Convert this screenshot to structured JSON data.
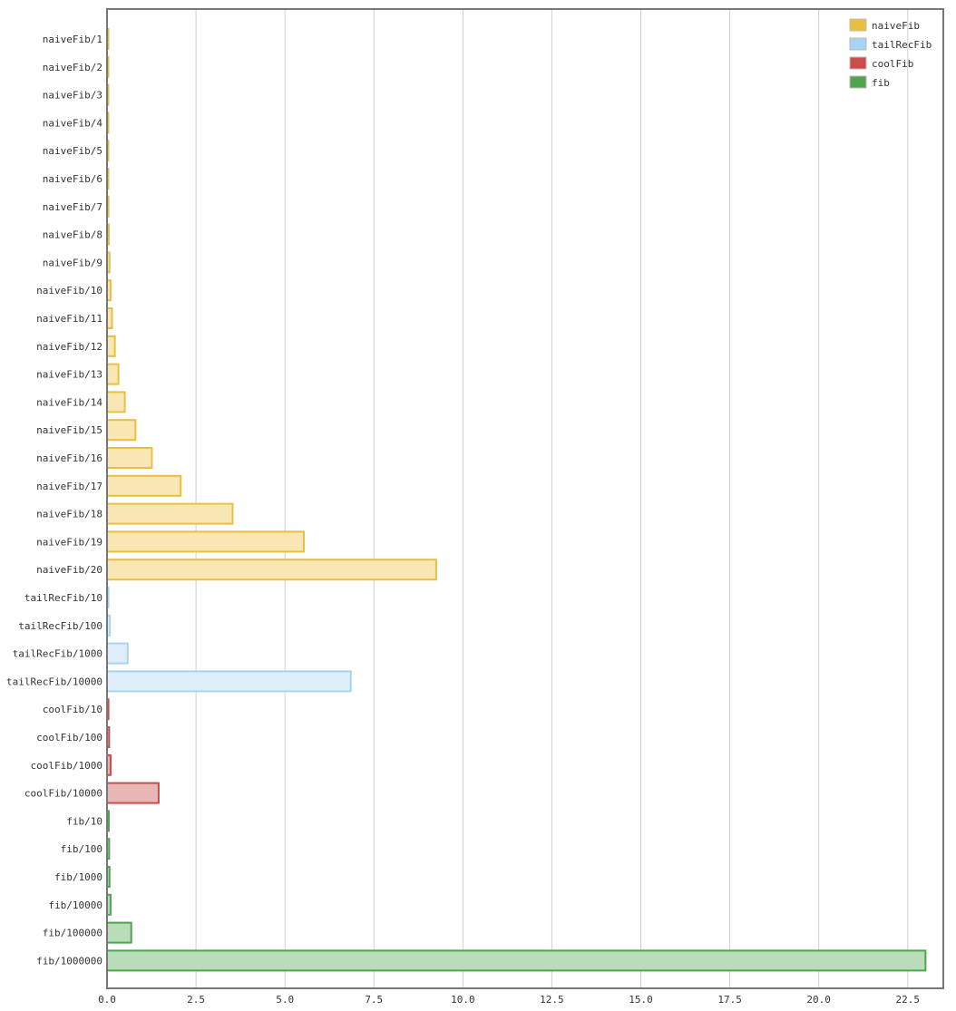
{
  "chart_data": {
    "type": "bar",
    "orientation": "horizontal",
    "title": "",
    "xlabel": "",
    "ylabel": "",
    "xlim": [
      0,
      23.5
    ],
    "x_ticks": [
      "0.0",
      "2.5",
      "5.0",
      "7.5",
      "10.0",
      "12.5",
      "15.0",
      "17.5",
      "20.0",
      "22.5"
    ],
    "grid": "vertical",
    "legend_position": "top-right",
    "series": [
      {
        "name": "naiveFib",
        "color": "#e8c040",
        "fill": "#f8e6b3",
        "categories": [
          "naiveFib/1",
          "naiveFib/2",
          "naiveFib/3",
          "naiveFib/4",
          "naiveFib/5",
          "naiveFib/6",
          "naiveFib/7",
          "naiveFib/8",
          "naiveFib/9",
          "naiveFib/10",
          "naiveFib/11",
          "naiveFib/12",
          "naiveFib/13",
          "naiveFib/14",
          "naiveFib/15",
          "naiveFib/16",
          "naiveFib/17",
          "naiveFib/18",
          "naiveFib/19",
          "naiveFib/20"
        ],
        "values": [
          0.01,
          0.01,
          0.01,
          0.02,
          0.02,
          0.03,
          0.04,
          0.05,
          0.07,
          0.1,
          0.14,
          0.22,
          0.32,
          0.5,
          0.8,
          1.26,
          2.07,
          3.53,
          5.53,
          9.25
        ]
      },
      {
        "name": "tailRecFib",
        "color": "#a8d4f4",
        "fill": "#deeefb",
        "categories": [
          "tailRecFib/10",
          "tailRecFib/100",
          "tailRecFib/1000",
          "tailRecFib/10000"
        ],
        "values": [
          0.04,
          0.08,
          0.58,
          6.85
        ]
      },
      {
        "name": "coolFib",
        "color": "#cc4b4b",
        "fill": "#e9b6b6",
        "categories": [
          "coolFib/10",
          "coolFib/100",
          "coolFib/1000",
          "coolFib/10000"
        ],
        "values": [
          0.04,
          0.06,
          0.1,
          1.45
        ]
      },
      {
        "name": "fib",
        "color": "#4ea54e",
        "fill": "#b9ddb8",
        "categories": [
          "fib/10",
          "fib/100",
          "fib/1000",
          "fib/10000",
          "fib/100000",
          "fib/1000000"
        ],
        "values": [
          0.05,
          0.06,
          0.07,
          0.1,
          0.68,
          23.0
        ]
      }
    ]
  }
}
